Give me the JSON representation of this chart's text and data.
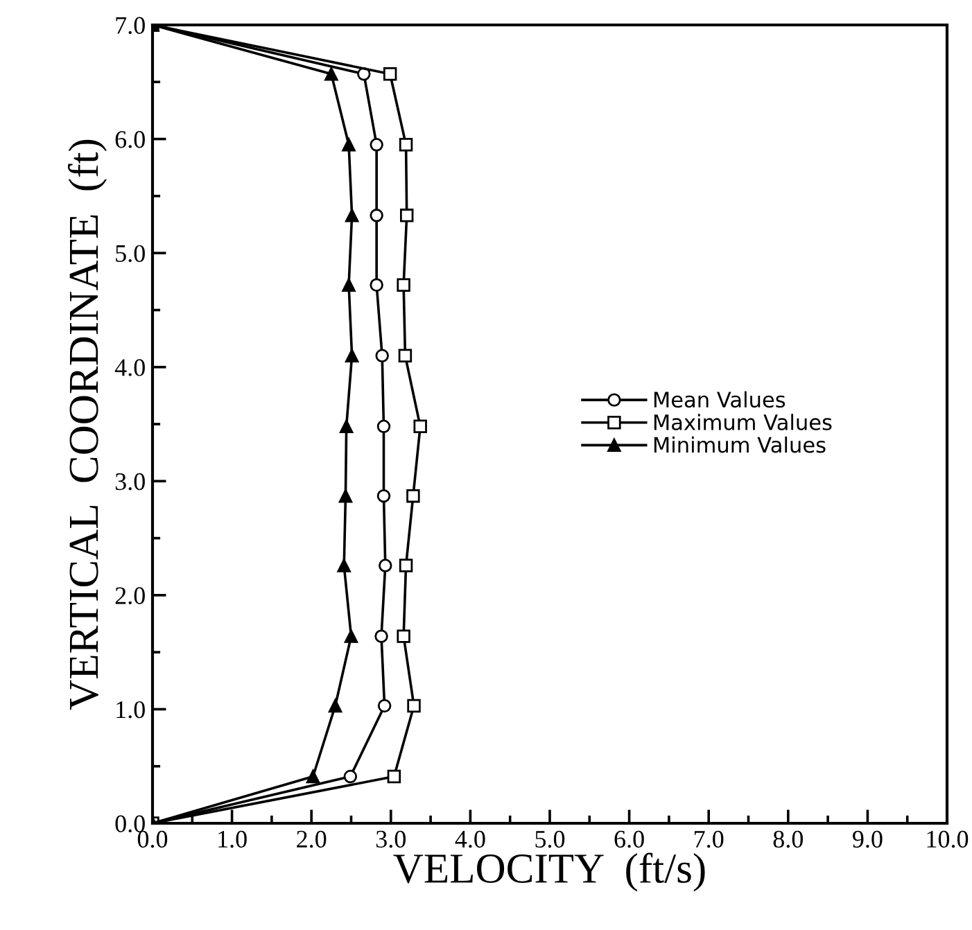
{
  "chart_data": {
    "type": "line",
    "xlabel": "VELOCITY  (ft/s)",
    "ylabel": "VERTICAL  COORDINATE  (ft)",
    "xlim": [
      0,
      10
    ],
    "xticks": [
      {
        "value": 0,
        "label": "0.0"
      },
      {
        "value": 1,
        "label": "1.0"
      },
      {
        "value": 2,
        "label": "2.0"
      },
      {
        "value": 3,
        "label": "3.0"
      },
      {
        "value": 4,
        "label": "4.0"
      },
      {
        "value": 5,
        "label": "5.0"
      },
      {
        "value": 6,
        "label": "6.0"
      },
      {
        "value": 7,
        "label": "7.0"
      },
      {
        "value": 8,
        "label": "8.0"
      },
      {
        "value": 9,
        "label": "9.0"
      },
      {
        "value": 10,
        "label": "10.0"
      }
    ],
    "ylim": [
      0,
      7
    ],
    "yticks": [
      {
        "value": 0,
        "label": "0.0"
      },
      {
        "value": 1,
        "label": "1.0"
      },
      {
        "value": 2,
        "label": "2.0"
      },
      {
        "value": 3,
        "label": "3.0"
      },
      {
        "value": 4,
        "label": "4.0"
      },
      {
        "value": 5,
        "label": "5.0"
      },
      {
        "value": 6,
        "label": "6.0"
      },
      {
        "value": 7,
        "label": "7.0"
      }
    ],
    "legend": "right",
    "grid": false,
    "line_style": "solid",
    "series": [
      {
        "name": "Mean Values",
        "color": "#000000",
        "marker": "circle",
        "x": [
          0,
          2.49,
          2.92,
          2.88,
          2.93,
          2.91,
          2.91,
          2.89,
          2.82,
          2.82,
          2.82,
          2.66,
          0
        ],
        "values": [
          0,
          0.41,
          1.03,
          1.64,
          2.26,
          2.87,
          3.48,
          4.1,
          4.72,
          5.33,
          5.95,
          6.57,
          7.0
        ]
      },
      {
        "name": "Maximum Values",
        "color": "#000000",
        "marker": "square",
        "x": [
          0,
          3.04,
          3.29,
          3.16,
          3.19,
          3.28,
          3.37,
          3.18,
          3.16,
          3.2,
          3.19,
          2.99,
          0
        ],
        "values": [
          0,
          0.41,
          1.03,
          1.64,
          2.26,
          2.87,
          3.48,
          4.1,
          4.72,
          5.33,
          5.95,
          6.57,
          7.0
        ]
      },
      {
        "name": "Minimum Values",
        "color": "#000000",
        "marker": "triangle",
        "x": [
          0,
          2.02,
          2.3,
          2.5,
          2.41,
          2.43,
          2.44,
          2.51,
          2.47,
          2.51,
          2.47,
          2.25,
          0
        ],
        "values": [
          0,
          0.41,
          1.03,
          1.64,
          2.26,
          2.87,
          3.48,
          4.1,
          4.72,
          5.33,
          5.95,
          6.57,
          7.0
        ]
      }
    ]
  }
}
